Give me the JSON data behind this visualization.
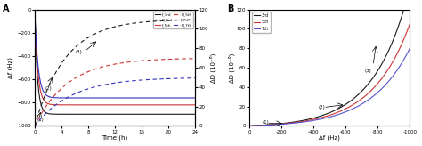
{
  "panel_A": {
    "xlabel": "Time (h)",
    "ylabel_left": "Δf (Hz)",
    "ylabel_right": "ΔD (10⁻⁶)",
    "xlim": [
      0,
      24
    ],
    "ylim_left": [
      -1000,
      0
    ],
    "ylim_right": [
      0,
      120
    ],
    "x_ticks": [
      0,
      4,
      8,
      12,
      16,
      20,
      24
    ],
    "y_ticks_left": [
      0,
      -200,
      -400,
      -600,
      -800,
      -1000
    ],
    "y_ticks_right": [
      0,
      20,
      40,
      60,
      80,
      100,
      120
    ],
    "colors": {
      "3rd": "#1a1a1a",
      "5th": "#cc3333",
      "7th": "#3333bb"
    },
    "f_plateaus": [
      -900,
      -820,
      -760
    ],
    "f_rates": [
      2.5,
      2.2,
      2.0
    ],
    "D_maxes": [
      110,
      70,
      50
    ],
    "D_rates": [
      0.22,
      0.2,
      0.18
    ]
  },
  "panel_B": {
    "xlabel": "Δf (Hz)",
    "ylabel": "ΔD (10⁻⁶)",
    "xlim": [
      0,
      -1000
    ],
    "ylim": [
      0,
      120
    ],
    "x_ticks": [
      0,
      -200,
      -400,
      -600,
      -800,
      -1000
    ],
    "x_ticklabels": [
      "0",
      "-200",
      "-400",
      "-600",
      "-800",
      "-1000"
    ],
    "y_ticks": [
      0,
      20,
      40,
      60,
      80,
      100,
      120
    ],
    "colors": {
      "3rd": "#1a1a1a",
      "5th": "#cc3333",
      "7th": "#5555cc"
    },
    "exp_scales": [
      1.6,
      1.45,
      1.35
    ],
    "exp_factors": [
      4.5,
      4.3,
      4.1
    ]
  },
  "background_color": "#ffffff"
}
